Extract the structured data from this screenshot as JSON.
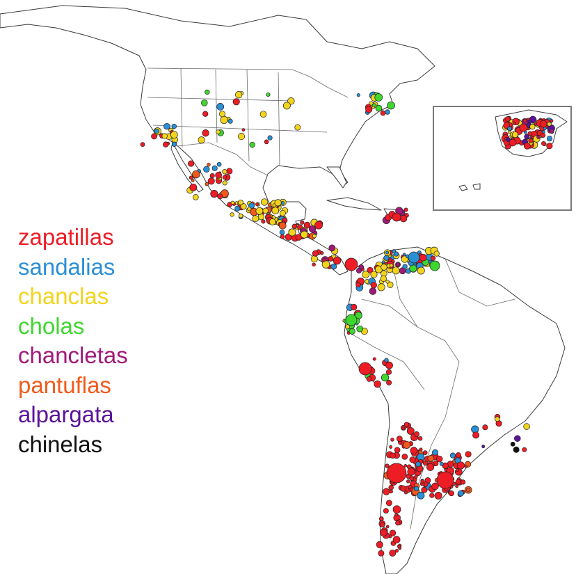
{
  "legend": {
    "items": [
      {
        "label": "zapatillas",
        "color": "#ee1c25"
      },
      {
        "label": "sandalias",
        "color": "#2b8fd6"
      },
      {
        "label": "chanclas",
        "color": "#f2d41c"
      },
      {
        "label": "cholas",
        "color": "#3fd62f"
      },
      {
        "label": "chancletas",
        "color": "#a0197a"
      },
      {
        "label": "pantuflas",
        "color": "#f25a1c"
      },
      {
        "label": "alpargata",
        "color": "#5a139a"
      },
      {
        "label": "chinelas",
        "color": "#111111"
      }
    ]
  }
}
